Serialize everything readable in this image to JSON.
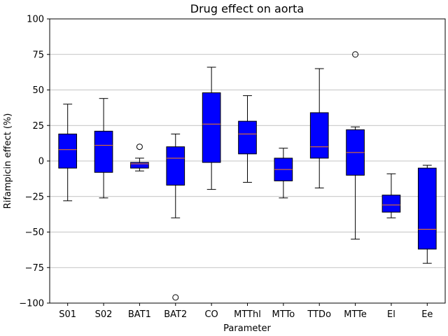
{
  "chart_data": {
    "type": "boxplot",
    "title": "Drug effect on aorta",
    "xlabel": "Parameter",
    "ylabel": "Rifampicin effect (%)",
    "ylim": [
      -100,
      100
    ],
    "yticks": [
      -100,
      -75,
      -50,
      -25,
      0,
      25,
      50,
      75,
      100
    ],
    "grid": "horizontal",
    "box_color": "#0000ff",
    "median_color": "#ff7f0e",
    "categories": [
      "S01",
      "S02",
      "BAT1",
      "BAT2",
      "CO",
      "MTThl",
      "MTTo",
      "TTDo",
      "MTTe",
      "El",
      "Ee"
    ],
    "boxes": [
      {
        "whisker_low": -28,
        "q1": -5,
        "median": 8,
        "q3": 19,
        "whisker_high": 40,
        "outliers": []
      },
      {
        "whisker_low": -26,
        "q1": -8,
        "median": 11,
        "q3": 21,
        "whisker_high": 44,
        "outliers": []
      },
      {
        "whisker_low": -7,
        "q1": -5,
        "median": -2,
        "q3": -1,
        "whisker_high": 2,
        "outliers": [
          10
        ]
      },
      {
        "whisker_low": -40,
        "q1": -17,
        "median": 2,
        "q3": 10,
        "whisker_high": 19,
        "outliers": [
          -96
        ]
      },
      {
        "whisker_low": -20,
        "q1": -1,
        "median": 26,
        "q3": 48,
        "whisker_high": 66,
        "outliers": []
      },
      {
        "whisker_low": -15,
        "q1": 5,
        "median": 19,
        "q3": 28,
        "whisker_high": 46,
        "outliers": []
      },
      {
        "whisker_low": -26,
        "q1": -14,
        "median": -6,
        "q3": 2,
        "whisker_high": 9,
        "outliers": []
      },
      {
        "whisker_low": -19,
        "q1": 2,
        "median": 10,
        "q3": 34,
        "whisker_high": 65,
        "outliers": []
      },
      {
        "whisker_low": -55,
        "q1": -10,
        "median": 6,
        "q3": 22,
        "whisker_high": 24,
        "outliers": [
          75
        ]
      },
      {
        "whisker_low": -40,
        "q1": -36,
        "median": -31,
        "q3": -24,
        "whisker_high": -9,
        "outliers": []
      },
      {
        "whisker_low": -72,
        "q1": -62,
        "median": -48,
        "q3": -5,
        "whisker_high": -3,
        "outliers": []
      }
    ]
  }
}
